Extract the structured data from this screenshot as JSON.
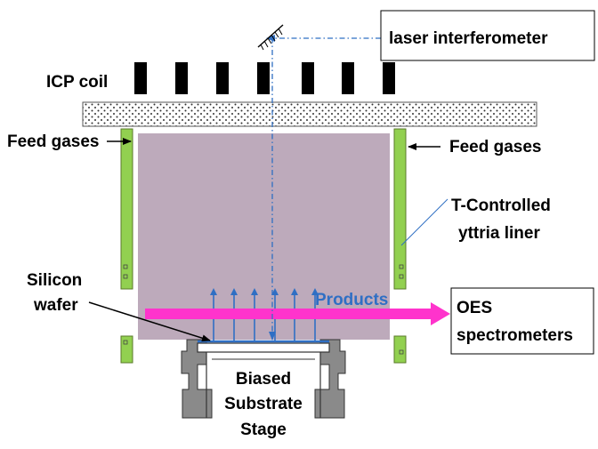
{
  "labels": {
    "laser": "laser interferometer",
    "icp_coil": "ICP coil",
    "feed_left": "Feed gases",
    "feed_right": "Feed gases",
    "liner_line1": "T-Controlled",
    "liner_line2": "yttria liner",
    "wafer_line1": "Silicon",
    "wafer_line2": "wafer",
    "products": "Products",
    "oes_line1": "OES",
    "oes_line2": "spectrometers",
    "stage_line1": "Biased",
    "stage_line2": "Substrate",
    "stage_line3": "Stage"
  },
  "colors": {
    "plasma": "#bdaabb",
    "liner": "#92d050",
    "products_arrow": "#ff33cc",
    "products_text": "#2f6fc4",
    "laser_beam": "#2f6fc4",
    "stage": "#8a8a8a",
    "coil": "#000000"
  },
  "icons": {
    "mirror": "hatched-mirror-icon"
  }
}
